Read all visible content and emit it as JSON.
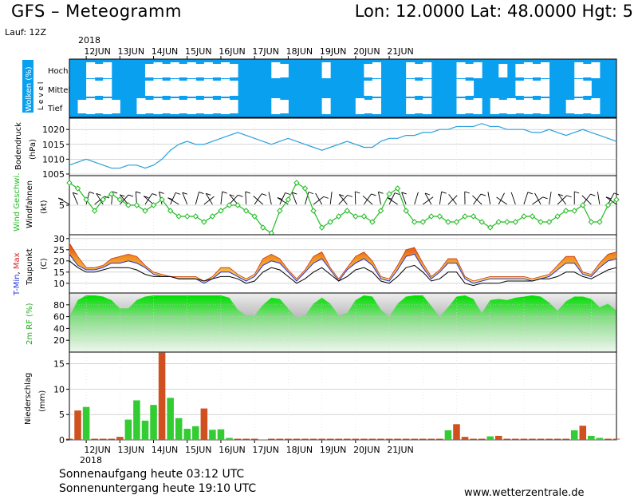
{
  "header": {
    "title": "GFS – Meteogramm",
    "coords": "Lon: 12.0000  Lat: 48.0000  Hgt: 5",
    "run": "Lauf: 12Z"
  },
  "timeline": {
    "year_top": "2018",
    "year_bottom": "2018",
    "day_labels": [
      "12JUN",
      "13JUN",
      "14JUN",
      "15JUN",
      "16JUN",
      "17JUN",
      "18JUN",
      "19JUN",
      "20JUN",
      "21JUN"
    ]
  },
  "panels": {
    "clouds": {
      "label": "Wolken (%)",
      "level_label": "L e v e l",
      "levels": [
        "Hoch",
        "Mittel",
        "Tief"
      ]
    },
    "pressure": {
      "label": "Bodendruck",
      "unit": "(hPa)"
    },
    "wind": {
      "label_colored": "Wind Geschwi.",
      "label": "Windfahnen",
      "unit": "(kt)"
    },
    "temp": {
      "label_min": "T-Min",
      "label_sep": ", ",
      "label_max": "Max",
      "label2": "Taupunkt",
      "unit": "(C)"
    },
    "humidity": {
      "label": "2m RF (%)"
    },
    "precip": {
      "label": "Niederschlag",
      "unit": "(mm)"
    }
  },
  "footer": {
    "sunrise": "Sonnenaufgang heute 03:12 UTC",
    "sunset": "Sonnenuntergang heute 19:10 UTC",
    "website": "www.wetterzentrale.de"
  },
  "colors": {
    "cloud_sky": "#0aa0f0",
    "pressure_line": "#2aa0dc",
    "wind_line": "#22bb22",
    "temp_fill_hot": "#e85010",
    "temp_fill_warm": "#f0c040",
    "humidity_fill": "#22cc22",
    "precip_bar": "#33cc33",
    "precip_bar_alt": "#d05020",
    "temp_min_label": "#2233dd",
    "temp_max_label": "#dd2222"
  },
  "chart_data": [
    {
      "type": "line",
      "title": "Bodendruck",
      "ylabel": "(hPa)",
      "ylim": [
        1005,
        1023
      ],
      "yticks": [
        1005,
        1010,
        1015,
        1020
      ],
      "x_start": "2018-06-11 12:00",
      "x_step_hours": 6,
      "series": [
        {
          "values": [
            1008,
            1009,
            1010,
            1009,
            1008,
            1007,
            1007,
            1008,
            1008,
            1007,
            1008,
            1010,
            1013,
            1015,
            1016,
            1015,
            1015,
            1016,
            1017,
            1018,
            1019,
            1018,
            1017,
            1016,
            1015,
            1016,
            1017,
            1016,
            1015,
            1014,
            1013,
            1014,
            1015,
            1016,
            1015,
            1014,
            1014,
            1016,
            1017,
            1017,
            1018,
            1018,
            1019,
            1019,
            1020,
            1020,
            1021,
            1021,
            1021,
            1022,
            1021,
            1021,
            1020,
            1020,
            1020,
            1019,
            1019,
            1020,
            1019,
            1018,
            1019,
            1020,
            1019,
            1018,
            1017,
            1016
          ]
        }
      ]
    },
    {
      "type": "line",
      "title": "Wind Geschwi.",
      "ylabel": "(kt)",
      "ylim": [
        0,
        10
      ],
      "yticks": [
        5
      ],
      "x_start": "2018-06-11 12:00",
      "x_step_hours": 6,
      "series": [
        {
          "values": [
            9,
            8,
            6,
            4,
            6,
            7,
            6,
            5,
            5,
            4,
            5,
            6,
            4,
            3,
            3,
            3,
            2,
            3,
            4,
            5,
            5,
            4,
            3,
            1,
            0,
            4,
            6,
            9,
            8,
            4,
            1,
            2,
            3,
            4,
            3,
            3,
            2,
            4,
            7,
            8,
            4,
            2,
            2,
            3,
            3,
            2,
            2,
            3,
            3,
            2,
            1,
            2,
            2,
            2,
            3,
            3,
            2,
            2,
            3,
            4,
            4,
            5,
            2,
            2,
            5,
            6
          ]
        }
      ]
    },
    {
      "type": "area",
      "title": "T-Min, Max / Taupunkt",
      "ylabel": "(C)",
      "ylim": [
        6,
        31
      ],
      "yticks": [
        10,
        15,
        20,
        25,
        30
      ],
      "x_start": "2018-06-11 12:00",
      "x_step_hours": 6,
      "series": [
        {
          "name": "Max",
          "values": [
            28,
            22,
            17,
            17,
            18,
            21,
            22,
            23,
            22,
            18,
            15,
            14,
            13,
            13,
            13,
            13,
            11,
            13,
            17,
            17,
            14,
            12,
            14,
            21,
            23,
            21,
            16,
            12,
            16,
            22,
            24,
            17,
            12,
            17,
            22,
            24,
            20,
            13,
            12,
            18,
            25,
            26,
            19,
            13,
            16,
            21,
            21,
            13,
            11,
            12,
            13,
            13,
            13,
            13,
            13,
            12,
            13,
            14,
            18,
            22,
            22,
            15,
            14,
            19,
            23,
            24
          ]
        },
        {
          "name": "T-Min",
          "values": [
            23,
            18,
            16,
            16,
            17,
            19,
            19,
            20,
            19,
            17,
            14,
            13,
            13,
            12,
            12,
            12,
            10,
            12,
            15,
            15,
            13,
            11,
            13,
            18,
            20,
            19,
            15,
            11,
            15,
            19,
            21,
            16,
            11,
            16,
            19,
            21,
            18,
            12,
            11,
            16,
            22,
            23,
            17,
            12,
            15,
            19,
            19,
            12,
            10,
            11,
            12,
            12,
            12,
            12,
            12,
            11,
            12,
            13,
            16,
            19,
            19,
            14,
            13,
            17,
            20,
            21
          ]
        },
        {
          "name": "Taupunkt",
          "values": [
            20,
            17,
            15,
            15,
            16,
            17,
            17,
            17,
            16,
            14,
            13,
            13,
            13,
            12,
            12,
            12,
            11,
            12,
            13,
            13,
            12,
            10,
            11,
            15,
            17,
            16,
            13,
            10,
            12,
            15,
            17,
            14,
            11,
            13,
            16,
            17,
            15,
            11,
            10,
            13,
            17,
            18,
            15,
            11,
            12,
            15,
            15,
            10,
            9,
            10,
            10,
            10,
            11,
            11,
            11,
            11,
            12,
            12,
            13,
            15,
            15,
            13,
            12,
            14,
            16,
            17
          ]
        }
      ]
    },
    {
      "type": "area",
      "title": "2m RF (%)",
      "ylabel": "(%)",
      "ylim": [
        0,
        100
      ],
      "yticks": [
        20,
        40,
        60,
        80
      ],
      "x_start": "2018-06-11 12:00",
      "x_step_hours": 6,
      "series": [
        {
          "values": [
            60,
            88,
            96,
            96,
            94,
            88,
            74,
            74,
            88,
            94,
            96,
            96,
            96,
            96,
            96,
            96,
            96,
            96,
            96,
            92,
            72,
            62,
            62,
            80,
            92,
            90,
            74,
            58,
            62,
            82,
            92,
            82,
            62,
            66,
            88,
            96,
            94,
            72,
            60,
            82,
            94,
            96,
            96,
            78,
            60,
            76,
            94,
            96,
            90,
            66,
            88,
            90,
            88,
            92,
            94,
            96,
            94,
            84,
            70,
            86,
            94,
            94,
            90,
            76,
            82,
            70
          ]
        }
      ]
    },
    {
      "type": "bar",
      "title": "Niederschlag",
      "ylabel": "(mm)",
      "ylim": [
        0,
        17
      ],
      "yticks": [
        0,
        5,
        10,
        15
      ],
      "x_start": "2018-06-11 12:00",
      "x_step_hours": 6,
      "series": [
        {
          "values": [
            0,
            5.8,
            6.5,
            0,
            0,
            0,
            0.6,
            4,
            7.8,
            3.8,
            6.9,
            17.2,
            8.3,
            4.3,
            2.2,
            2.7,
            6.2,
            2,
            2.1,
            0.4,
            0,
            0,
            0,
            0.1,
            0,
            0,
            0,
            0,
            0,
            0,
            0,
            0,
            0,
            0,
            0,
            0,
            0,
            0,
            0,
            0,
            0,
            0,
            0,
            0,
            0,
            1.9,
            3.1,
            0.6,
            0,
            0,
            0.7,
            0.8,
            0,
            0,
            0,
            0,
            0,
            0,
            0,
            0,
            1.9,
            2.8,
            0.8,
            0.4,
            0,
            0
          ]
        }
      ]
    }
  ]
}
